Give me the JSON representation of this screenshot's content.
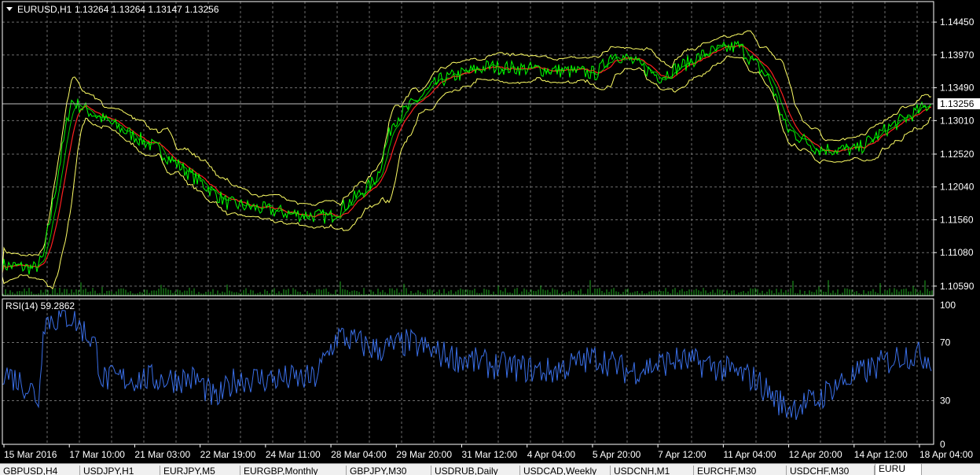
{
  "main_panel": {
    "label": "EURUSD,H1",
    "ohlc": "1.13264 1.13264 1.13147 1.13256",
    "price_ticks": [
      "1.14450",
      "1.13970",
      "1.13490",
      "1.13010",
      "1.12520",
      "1.12040",
      "1.11560",
      "1.11080",
      "1.10590"
    ],
    "price_tick_values": [
      1.1445,
      1.1397,
      1.1349,
      1.1301,
      1.1252,
      1.1204,
      1.1156,
      1.1108,
      1.1059
    ],
    "current_price": "1.13256",
    "current_price_value": 1.13256,
    "price_range": [
      1.1045,
      1.1475
    ]
  },
  "rsi_panel": {
    "label": "RSI(14) 59.2862",
    "levels": [
      "100",
      "70",
      "30",
      "0"
    ],
    "level_values": [
      100,
      70,
      30,
      0
    ],
    "range": [
      0,
      100
    ]
  },
  "time_axis": [
    "15 Mar 2016",
    "17 Mar 10:00",
    "21 Mar 03:00",
    "22 Mar 19:00",
    "24 Mar 11:00",
    "28 Mar 04:00",
    "29 Mar 20:00",
    "31 Mar 12:00",
    "4 Apr 04:00",
    "5 Apr 20:00",
    "7 Apr 12:00",
    "11 Apr 04:00",
    "12 Apr 20:00",
    "14 Apr 12:00",
    "18 Apr 04:00"
  ],
  "colors": {
    "background": "#000000",
    "grid": "#6e6e6e",
    "price_line": "#00ff00",
    "bollinger": "#ffff66",
    "ma_red": "#ff2020",
    "ma_green": "#00cc00",
    "volume": "#22aa22",
    "rsi": "#3a6fe8",
    "text": "#ffffff"
  },
  "tabs": [
    "GBPUSD,H4",
    "USDJPY,H1",
    "EURJPY,M5",
    "EURGBP,Monthly",
    "GBPJPY,M30",
    "USDRUB,Daily",
    "USDCAD,Weekly",
    "USDCNH,M1",
    "EURCHF,M30",
    "USDCHF,M30",
    "EURU"
  ],
  "active_tab": 10
}
